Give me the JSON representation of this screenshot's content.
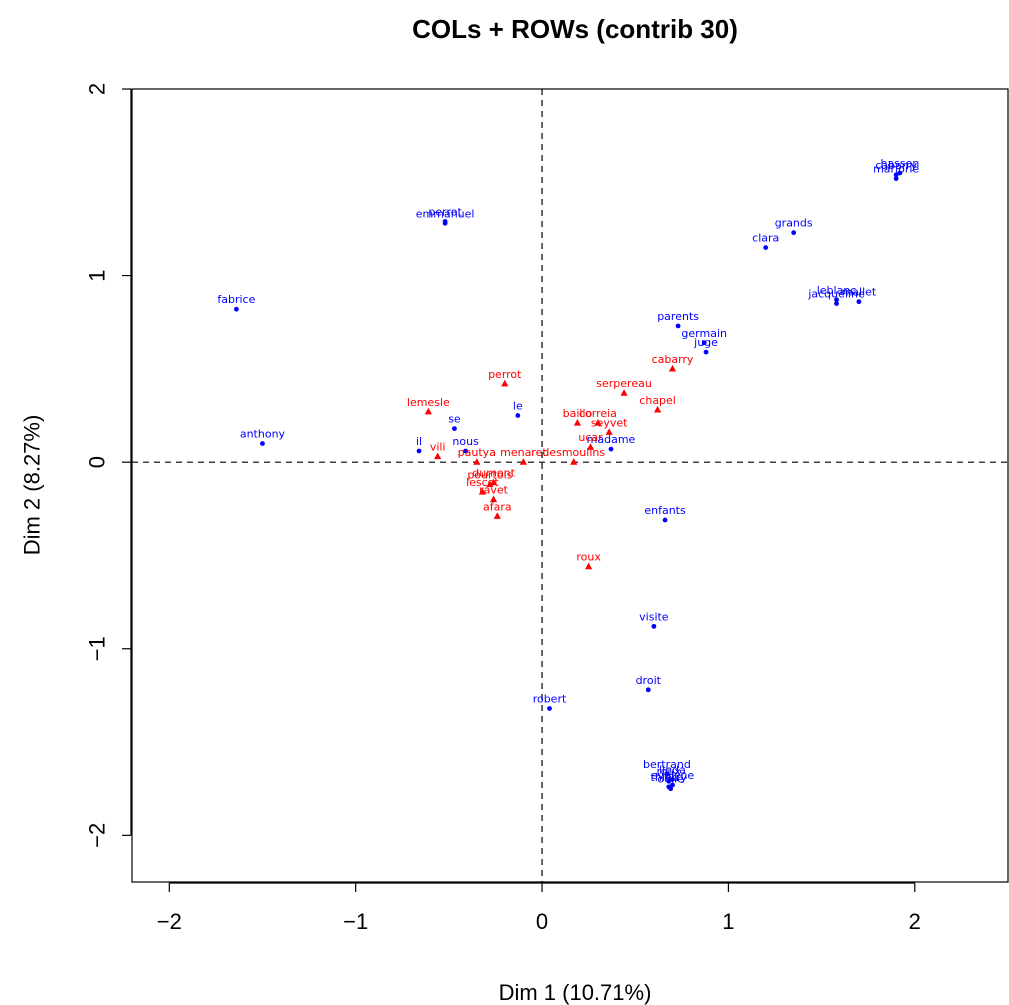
{
  "chart_data": {
    "type": "scatter",
    "title": "COLs + ROWs (contrib 30)",
    "xlabel": "Dim 1 (10.71%)",
    "ylabel": "Dim 2 (8.27%)",
    "xlim": [
      -2.2,
      2.5
    ],
    "ylim": [
      -2.25,
      2.0
    ],
    "xticks": [
      -2,
      -1,
      0,
      1,
      2
    ],
    "yticks": [
      -2,
      -1,
      0,
      1,
      2
    ],
    "xtick_labels": [
      "−2",
      "−1",
      "0",
      "1",
      "2"
    ],
    "ytick_labels": [
      "−2",
      "−1",
      "0",
      "1",
      "2"
    ],
    "grid": false,
    "reference_lines": {
      "x": 0,
      "y": 0,
      "style": "dashed"
    },
    "colors": {
      "columns": "#0000ff",
      "rows": "#ff0000"
    },
    "series": [
      {
        "marker": "circle",
        "color": "#0000ff",
        "points": [
          {
            "label": "cabarry",
            "x": 1.9,
            "y": 1.54
          },
          {
            "label": "hasson",
            "x": 1.92,
            "y": 1.55
          },
          {
            "label": "marjorie",
            "x": 1.9,
            "y": 1.52
          },
          {
            "label": "grands",
            "x": 1.35,
            "y": 1.23
          },
          {
            "label": "clara",
            "x": 1.2,
            "y": 1.15
          },
          {
            "label": "leblanc",
            "x": 1.58,
            "y": 0.87
          },
          {
            "label": "mallet",
            "x": 1.7,
            "y": 0.86
          },
          {
            "label": "jacqueline",
            "x": 1.58,
            "y": 0.85
          },
          {
            "label": "parents",
            "x": 0.73,
            "y": 0.73
          },
          {
            "label": "germain",
            "x": 0.87,
            "y": 0.64
          },
          {
            "label": "juge",
            "x": 0.88,
            "y": 0.59
          },
          {
            "label": "perrot",
            "x": -0.52,
            "y": 1.29
          },
          {
            "label": "emmanuel",
            "x": -0.52,
            "y": 1.28
          },
          {
            "label": "fabrice",
            "x": -1.64,
            "y": 0.82
          },
          {
            "label": "anthony",
            "x": -1.5,
            "y": 0.1
          },
          {
            "label": "le",
            "x": -0.13,
            "y": 0.25
          },
          {
            "label": "se",
            "x": -0.47,
            "y": 0.18
          },
          {
            "label": "nous",
            "x": -0.41,
            "y": 0.06
          },
          {
            "label": "il",
            "x": -0.66,
            "y": 0.06
          },
          {
            "label": "madame",
            "x": 0.37,
            "y": 0.07
          },
          {
            "label": "enfants",
            "x": 0.66,
            "y": -0.31
          },
          {
            "label": "visite",
            "x": 0.6,
            "y": -0.88
          },
          {
            "label": "droit",
            "x": 0.57,
            "y": -1.22
          },
          {
            "label": "robert",
            "x": 0.04,
            "y": -1.32
          },
          {
            "label": "bertrand",
            "x": 0.67,
            "y": -1.67
          },
          {
            "label": "roux",
            "x": 0.68,
            "y": -1.71
          },
          {
            "label": "linda",
            "x": 0.7,
            "y": -1.7
          },
          {
            "label": "evelyne",
            "x": 0.7,
            "y": -1.73
          },
          {
            "label": "thierry",
            "x": 0.68,
            "y": -1.74
          },
          {
            "label": "odile",
            "x": 0.69,
            "y": -1.75
          }
        ]
      },
      {
        "marker": "triangle",
        "color": "#ff0000",
        "points": [
          {
            "label": "cabarry",
            "x": 0.7,
            "y": 0.5
          },
          {
            "label": "serpereau",
            "x": 0.44,
            "y": 0.37
          },
          {
            "label": "chapel",
            "x": 0.62,
            "y": 0.28
          },
          {
            "label": "perrot",
            "x": -0.2,
            "y": 0.42
          },
          {
            "label": "lemesle",
            "x": -0.61,
            "y": 0.27
          },
          {
            "label": "baillo",
            "x": 0.19,
            "y": 0.21
          },
          {
            "label": "correia",
            "x": 0.3,
            "y": 0.21
          },
          {
            "label": "seyvet",
            "x": 0.36,
            "y": 0.16
          },
          {
            "label": "ucar",
            "x": 0.26,
            "y": 0.08
          },
          {
            "label": "menaret",
            "x": -0.1,
            "y": 0.0
          },
          {
            "label": "desmoulins",
            "x": 0.17,
            "y": 0.0
          },
          {
            "label": "vili",
            "x": -0.56,
            "y": 0.03
          },
          {
            "label": "pautya",
            "x": -0.35,
            "y": 0.0
          },
          {
            "label": "pourtois",
            "x": -0.28,
            "y": -0.12
          },
          {
            "label": "dumont",
            "x": -0.26,
            "y": -0.11
          },
          {
            "label": "lescot",
            "x": -0.32,
            "y": -0.16
          },
          {
            "label": "ravet",
            "x": -0.26,
            "y": -0.2
          },
          {
            "label": "afara",
            "x": -0.24,
            "y": -0.29
          },
          {
            "label": "roux",
            "x": 0.25,
            "y": -0.56
          }
        ]
      }
    ]
  }
}
